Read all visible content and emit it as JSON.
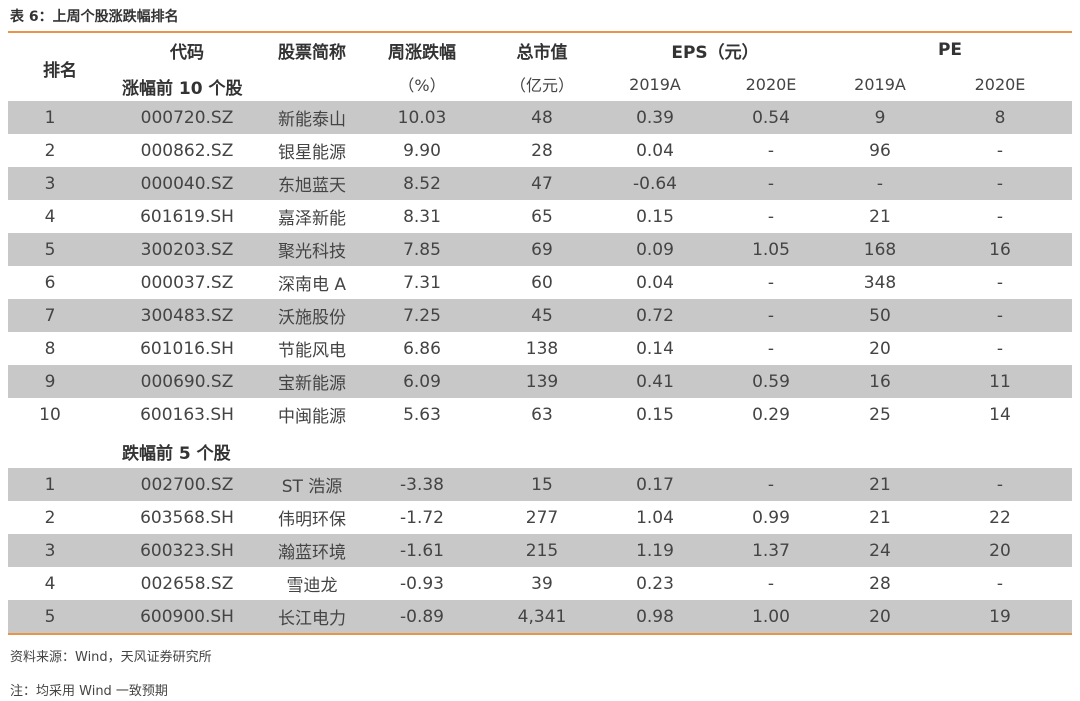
{
  "title": "表 6：上周个股涨跌幅排名",
  "header": {
    "rank": "排名",
    "code": "代码",
    "name": "股票简称",
    "weekly_change": "周涨跌幅",
    "weekly_change_unit": "（%）",
    "market_cap": "总市值",
    "market_cap_unit": "（亿元）",
    "eps": "EPS（元）",
    "pe": "PE",
    "eps_2019": "2019A",
    "eps_2020": "2020E",
    "pe_2019": "2019A",
    "pe_2020": "2020E"
  },
  "sections": {
    "gainers": "涨幅前 10 个股",
    "losers": "跌幅前 5 个股"
  },
  "gainers": [
    {
      "rank": "1",
      "code": "000720.SZ",
      "name": "新能泰山",
      "chg": "10.03",
      "cap": "48",
      "eps19": "0.39",
      "eps20": "0.54",
      "pe19": "9",
      "pe20": "8"
    },
    {
      "rank": "2",
      "code": "000862.SZ",
      "name": "银星能源",
      "chg": "9.90",
      "cap": "28",
      "eps19": "0.04",
      "eps20": "-",
      "pe19": "96",
      "pe20": "-"
    },
    {
      "rank": "3",
      "code": "000040.SZ",
      "name": "东旭蓝天",
      "chg": "8.52",
      "cap": "47",
      "eps19": "-0.64",
      "eps20": "-",
      "pe19": "-",
      "pe20": "-"
    },
    {
      "rank": "4",
      "code": "601619.SH",
      "name": "嘉泽新能",
      "chg": "8.31",
      "cap": "65",
      "eps19": "0.15",
      "eps20": "-",
      "pe19": "21",
      "pe20": "-"
    },
    {
      "rank": "5",
      "code": "300203.SZ",
      "name": "聚光科技",
      "chg": "7.85",
      "cap": "69",
      "eps19": "0.09",
      "eps20": "1.05",
      "pe19": "168",
      "pe20": "16"
    },
    {
      "rank": "6",
      "code": "000037.SZ",
      "name": "深南电 A",
      "chg": "7.31",
      "cap": "60",
      "eps19": "0.04",
      "eps20": "-",
      "pe19": "348",
      "pe20": "-"
    },
    {
      "rank": "7",
      "code": "300483.SZ",
      "name": "沃施股份",
      "chg": "7.25",
      "cap": "45",
      "eps19": "0.72",
      "eps20": "-",
      "pe19": "50",
      "pe20": "-"
    },
    {
      "rank": "8",
      "code": "601016.SH",
      "name": "节能风电",
      "chg": "6.86",
      "cap": "138",
      "eps19": "0.14",
      "eps20": "-",
      "pe19": "20",
      "pe20": "-"
    },
    {
      "rank": "9",
      "code": "000690.SZ",
      "name": "宝新能源",
      "chg": "6.09",
      "cap": "139",
      "eps19": "0.41",
      "eps20": "0.59",
      "pe19": "16",
      "pe20": "11"
    },
    {
      "rank": "10",
      "code": "600163.SH",
      "name": "中闽能源",
      "chg": "5.63",
      "cap": "63",
      "eps19": "0.15",
      "eps20": "0.29",
      "pe19": "25",
      "pe20": "14"
    }
  ],
  "losers": [
    {
      "rank": "1",
      "code": "002700.SZ",
      "name": "ST 浩源",
      "chg": "-3.38",
      "cap": "15",
      "eps19": "0.17",
      "eps20": "-",
      "pe19": "21",
      "pe20": "-"
    },
    {
      "rank": "2",
      "code": "603568.SH",
      "name": "伟明环保",
      "chg": "-1.72",
      "cap": "277",
      "eps19": "1.04",
      "eps20": "0.99",
      "pe19": "21",
      "pe20": "22"
    },
    {
      "rank": "3",
      "code": "600323.SH",
      "name": "瀚蓝环境",
      "chg": "-1.61",
      "cap": "215",
      "eps19": "1.19",
      "eps20": "1.37",
      "pe19": "24",
      "pe20": "20"
    },
    {
      "rank": "4",
      "code": "002658.SZ",
      "name": "雪迪龙",
      "chg": "-0.93",
      "cap": "39",
      "eps19": "0.23",
      "eps20": "-",
      "pe19": "28",
      "pe20": "-"
    },
    {
      "rank": "5",
      "code": "600900.SH",
      "name": "长江电力",
      "chg": "-0.89",
      "cap": "4,341",
      "eps19": "0.98",
      "eps20": "1.00",
      "pe19": "20",
      "pe20": "19"
    }
  ],
  "notes": {
    "source": "资料来源：Wind，天风证券研究所",
    "note": "注：均采用 Wind 一致预期"
  },
  "colors": {
    "accent_line": "#e8954a",
    "row_shade": "#c8c8c8"
  }
}
